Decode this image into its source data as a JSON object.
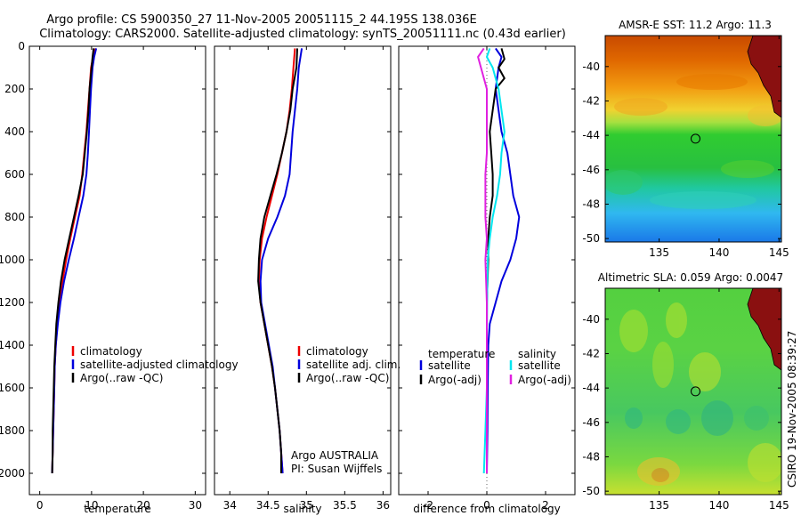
{
  "header": {
    "title_line1": "Argo profile: CS 5900350_27 11-Nov-2005 20051115_2 44.195S 138.036E",
    "title_line2": "Climatology: CARS2000. Satellite-adjusted climatology: synTS_20051111.nc (0.43d earlier)"
  },
  "side_text": "CSIRO 19-Nov-2005 08:39:27",
  "agency": "Argo AUSTRALIA",
  "pi": "PI: Susan Wijffels",
  "colors": {
    "red": "#ee0000",
    "blue": "#0000dd",
    "black": "#000000",
    "cyan": "#00e6f0",
    "magenta": "#e020e0"
  },
  "chart_data": [
    {
      "type": "line",
      "id": "temperature",
      "xlabel": "temperature",
      "ylabel": "",
      "xlim": [
        -2,
        32
      ],
      "ylim": [
        2100,
        0
      ],
      "xticks": [
        0,
        10,
        20,
        30
      ],
      "yticks": [
        0,
        200,
        400,
        600,
        800,
        1000,
        1200,
        1400,
        1600,
        1800,
        2000
      ],
      "legend": [
        "climatology",
        "satellite-adjusted climatology",
        "Argo(..raw -QC)"
      ],
      "series": [
        {
          "name": "climatology",
          "color": "red",
          "points": [
            [
              10.6,
              10
            ],
            [
              10.3,
              50
            ],
            [
              9.9,
              100
            ],
            [
              9.6,
              200
            ],
            [
              9.3,
              300
            ],
            [
              9.0,
              400
            ],
            [
              8.6,
              500
            ],
            [
              8.2,
              600
            ],
            [
              7.7,
              700
            ],
            [
              6.8,
              800
            ],
            [
              5.9,
              900
            ],
            [
              5.1,
              1000
            ],
            [
              4.4,
              1100
            ],
            [
              3.8,
              1200
            ],
            [
              3.4,
              1300
            ],
            [
              3.1,
              1400
            ],
            [
              2.9,
              1500
            ],
            [
              2.8,
              1600
            ],
            [
              2.7,
              1700
            ],
            [
              2.6,
              1800
            ],
            [
              2.5,
              1900
            ],
            [
              2.4,
              2000
            ]
          ]
        },
        {
          "name": "satellite-adjusted climatology",
          "color": "blue",
          "points": [
            [
              10.9,
              10
            ],
            [
              10.5,
              50
            ],
            [
              10.2,
              100
            ],
            [
              9.9,
              200
            ],
            [
              9.7,
              300
            ],
            [
              9.5,
              400
            ],
            [
              9.3,
              500
            ],
            [
              9.0,
              600
            ],
            [
              8.4,
              700
            ],
            [
              7.5,
              800
            ],
            [
              6.6,
              900
            ],
            [
              5.6,
              1000
            ],
            [
              4.7,
              1100
            ],
            [
              4.0,
              1200
            ],
            [
              3.5,
              1300
            ],
            [
              3.1,
              1400
            ],
            [
              2.9,
              1500
            ],
            [
              2.8,
              1600
            ],
            [
              2.7,
              1700
            ],
            [
              2.6,
              1800
            ],
            [
              2.5,
              1900
            ],
            [
              2.4,
              2000
            ]
          ]
        },
        {
          "name": "Argo(..raw -QC)",
          "color": "black",
          "points": [
            [
              10.4,
              10
            ],
            [
              10.2,
              50
            ],
            [
              10.0,
              100
            ],
            [
              9.6,
              200
            ],
            [
              9.4,
              300
            ],
            [
              9.1,
              400
            ],
            [
              8.7,
              500
            ],
            [
              8.3,
              600
            ],
            [
              7.5,
              700
            ],
            [
              6.6,
              800
            ],
            [
              5.7,
              900
            ],
            [
              4.8,
              1000
            ],
            [
              4.1,
              1100
            ],
            [
              3.6,
              1200
            ],
            [
              3.2,
              1300
            ],
            [
              3.0,
              1400
            ],
            [
              2.8,
              1500
            ],
            [
              2.7,
              1600
            ],
            [
              2.6,
              1700
            ],
            [
              2.5,
              1800
            ],
            [
              2.5,
              1900
            ],
            [
              2.4,
              2000
            ]
          ]
        }
      ]
    },
    {
      "type": "line",
      "id": "salinity",
      "xlabel": "salinity",
      "xlim": [
        33.8,
        36.1
      ],
      "ylim": [
        2100,
        0
      ],
      "xticks": [
        34,
        34.5,
        35,
        35.5,
        36
      ],
      "legend": [
        "climatology",
        "satellite adj. clim.",
        "Argo(..raw -QC)"
      ],
      "series": [
        {
          "name": "climatology",
          "color": "red",
          "points": [
            [
              34.85,
              10
            ],
            [
              34.83,
              100
            ],
            [
              34.81,
              200
            ],
            [
              34.78,
              300
            ],
            [
              34.74,
              400
            ],
            [
              34.68,
              500
            ],
            [
              34.62,
              600
            ],
            [
              34.55,
              700
            ],
            [
              34.48,
              800
            ],
            [
              34.42,
              900
            ],
            [
              34.39,
              1000
            ],
            [
              34.38,
              1100
            ],
            [
              34.4,
              1200
            ],
            [
              34.45,
              1300
            ],
            [
              34.5,
              1400
            ],
            [
              34.55,
              1500
            ],
            [
              34.59,
              1600
            ],
            [
              34.62,
              1700
            ],
            [
              34.65,
              1800
            ],
            [
              34.67,
              1900
            ],
            [
              34.69,
              2000
            ]
          ]
        },
        {
          "name": "satellite adj. clim.",
          "color": "blue",
          "points": [
            [
              34.94,
              10
            ],
            [
              34.9,
              100
            ],
            [
              34.88,
              200
            ],
            [
              34.85,
              300
            ],
            [
              34.82,
              400
            ],
            [
              34.8,
              500
            ],
            [
              34.78,
              600
            ],
            [
              34.72,
              700
            ],
            [
              34.62,
              800
            ],
            [
              34.5,
              900
            ],
            [
              34.42,
              1000
            ],
            [
              34.4,
              1100
            ],
            [
              34.41,
              1200
            ],
            [
              34.46,
              1300
            ],
            [
              34.51,
              1400
            ],
            [
              34.56,
              1500
            ],
            [
              34.59,
              1600
            ],
            [
              34.62,
              1700
            ],
            [
              34.65,
              1800
            ],
            [
              34.67,
              1900
            ],
            [
              34.69,
              2000
            ]
          ]
        },
        {
          "name": "Argo(..raw -QC)",
          "color": "black",
          "points": [
            [
              34.88,
              10
            ],
            [
              34.87,
              100
            ],
            [
              34.82,
              200
            ],
            [
              34.79,
              300
            ],
            [
              34.74,
              400
            ],
            [
              34.68,
              500
            ],
            [
              34.61,
              600
            ],
            [
              34.53,
              700
            ],
            [
              34.45,
              800
            ],
            [
              34.4,
              900
            ],
            [
              34.38,
              1000
            ],
            [
              34.37,
              1100
            ],
            [
              34.4,
              1200
            ],
            [
              34.45,
              1300
            ],
            [
              34.5,
              1400
            ],
            [
              34.55,
              1500
            ],
            [
              34.59,
              1600
            ],
            [
              34.62,
              1700
            ],
            [
              34.65,
              1800
            ],
            [
              34.67,
              1900
            ],
            [
              34.67,
              2000
            ]
          ]
        }
      ]
    },
    {
      "type": "line",
      "id": "difference",
      "xlabel": "difference from climatology",
      "xlim": [
        -3,
        3
      ],
      "ylim": [
        2100,
        0
      ],
      "xticks": [
        -2,
        0,
        2
      ],
      "legend_left_title": "temperature",
      "legend_right_title": "salinity",
      "legend": [
        "satellite",
        "Argo(-adj)",
        "satellite",
        "Argo(-adj)"
      ],
      "series": [
        {
          "name": "satellite",
          "color": "blue",
          "points": [
            [
              0.3,
              10
            ],
            [
              0.5,
              50
            ],
            [
              0.4,
              100
            ],
            [
              0.3,
              200
            ],
            [
              0.4,
              300
            ],
            [
              0.5,
              400
            ],
            [
              0.7,
              500
            ],
            [
              0.8,
              600
            ],
            [
              0.9,
              700
            ],
            [
              1.1,
              800
            ],
            [
              1.0,
              900
            ],
            [
              0.8,
              1000
            ],
            [
              0.5,
              1100
            ],
            [
              0.3,
              1200
            ],
            [
              0.1,
              1300
            ],
            [
              0.05,
              1400
            ],
            [
              0.03,
              1600
            ],
            [
              0.02,
              1800
            ],
            [
              0.0,
              2000
            ]
          ]
        },
        {
          "name": "Argo(-adj)",
          "color": "black",
          "points": [
            [
              0.5,
              10
            ],
            [
              0.6,
              60
            ],
            [
              0.4,
              100
            ],
            [
              0.6,
              150
            ],
            [
              0.3,
              200
            ],
            [
              0.2,
              300
            ],
            [
              0.1,
              400
            ],
            [
              0.15,
              500
            ],
            [
              0.2,
              600
            ],
            [
              0.2,
              700
            ],
            [
              0.1,
              800
            ],
            [
              0.05,
              900
            ],
            [
              0.05,
              1000
            ],
            [
              0.0,
              1200
            ],
            [
              0.0,
              1400
            ],
            [
              0.0,
              1600
            ],
            [
              0.0,
              1800
            ],
            [
              0.0,
              2000
            ]
          ]
        },
        {
          "name": "satellite",
          "color": "cyan",
          "points": [
            [
              0.1,
              10
            ],
            [
              0.0,
              50
            ],
            [
              0.2,
              100
            ],
            [
              0.4,
              200
            ],
            [
              0.5,
              300
            ],
            [
              0.6,
              400
            ],
            [
              0.5,
              500
            ],
            [
              0.45,
              600
            ],
            [
              0.35,
              700
            ],
            [
              0.2,
              800
            ],
            [
              0.1,
              900
            ],
            [
              0.03,
              1000
            ],
            [
              0.01,
              1200
            ],
            [
              0.0,
              1400
            ],
            [
              0.0,
              1600
            ],
            [
              -0.05,
              1800
            ],
            [
              -0.1,
              2000
            ]
          ]
        },
        {
          "name": "Argo(-adj)",
          "color": "magenta",
          "points": [
            [
              -0.1,
              10
            ],
            [
              -0.3,
              50
            ],
            [
              -0.2,
              100
            ],
            [
              0.0,
              200
            ],
            [
              0.0,
              300
            ],
            [
              0.0,
              400
            ],
            [
              0.0,
              500
            ],
            [
              -0.05,
              600
            ],
            [
              -0.05,
              700
            ],
            [
              -0.05,
              800
            ],
            [
              0.0,
              900
            ],
            [
              -0.05,
              1000
            ],
            [
              0.0,
              1200
            ],
            [
              0.0,
              1400
            ],
            [
              0.0,
              1600
            ],
            [
              0.0,
              1800
            ],
            [
              0.0,
              2000
            ]
          ]
        }
      ]
    },
    {
      "type": "heatmap",
      "id": "sst_map",
      "title": "AMSR-E SST: 11.2 Argo: 11.3",
      "xlim": [
        130.5,
        145.2
      ],
      "ylim": [
        -50.2,
        -38.2
      ],
      "xticks": [
        135,
        140,
        145
      ],
      "yticks": [
        -40,
        -42,
        -44,
        -46,
        -48,
        -50
      ],
      "marker": {
        "lon": 138.036,
        "lat": -44.195
      }
    },
    {
      "type": "heatmap",
      "id": "sla_map",
      "title": "Altimetric SLA: 0.059 Argo: 0.0047",
      "xlim": [
        130.5,
        145.2
      ],
      "ylim": [
        -50.2,
        -38.2
      ],
      "xticks": [
        135,
        140,
        145
      ],
      "yticks": [
        -40,
        -42,
        -44,
        -46,
        -48,
        -50
      ],
      "marker": {
        "lon": 138.036,
        "lat": -44.195
      }
    }
  ]
}
